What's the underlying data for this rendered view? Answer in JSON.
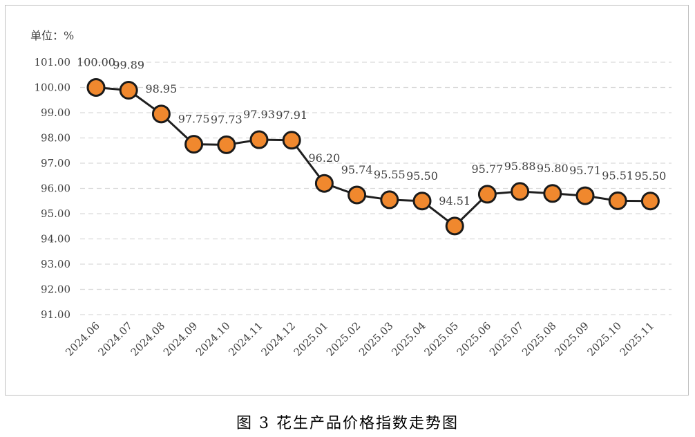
{
  "unit_label": "单位：%",
  "caption": "图 3  花生产品价格指数走势图",
  "colors": {
    "line": "#1f1f1f",
    "marker_fill": "#f0882e",
    "marker_stroke": "#1a1a1a",
    "grid": "#d9d9d9",
    "text": "#404040"
  },
  "chart_data": {
    "type": "line",
    "title": "",
    "xlabel": "",
    "ylabel": "单位：%",
    "ylim": [
      91,
      101
    ],
    "yticks": [
      "91.00",
      "92.00",
      "93.00",
      "94.00",
      "95.00",
      "96.00",
      "97.00",
      "98.00",
      "99.00",
      "100.00",
      "101.00"
    ],
    "grid": "horizontal dashed",
    "legend": "none",
    "categories": [
      "2024.06",
      "2024.07",
      "2024.08",
      "2024.09",
      "2024.10",
      "2024.11",
      "2024.12",
      "2025.01",
      "2025.02",
      "2025.03",
      "2025.04",
      "2025.05",
      "2025.06",
      "2025.07",
      "2025.08",
      "2025.09",
      "2025.10",
      "2025.11"
    ],
    "values": [
      100.0,
      99.89,
      98.95,
      97.75,
      97.73,
      97.93,
      97.91,
      96.2,
      95.74,
      95.55,
      95.5,
      94.51,
      95.77,
      95.88,
      95.8,
      95.71,
      95.51,
      95.5
    ],
    "data_labels": [
      "100.00",
      "99.89",
      "98.95",
      "97.75",
      "97.73",
      "97.93",
      "97.91",
      "96.20",
      "95.74",
      "95.55",
      "95.50",
      "94.51",
      "95.77",
      "95.88",
      "95.80",
      "95.71",
      "95.51",
      "95.50"
    ]
  }
}
